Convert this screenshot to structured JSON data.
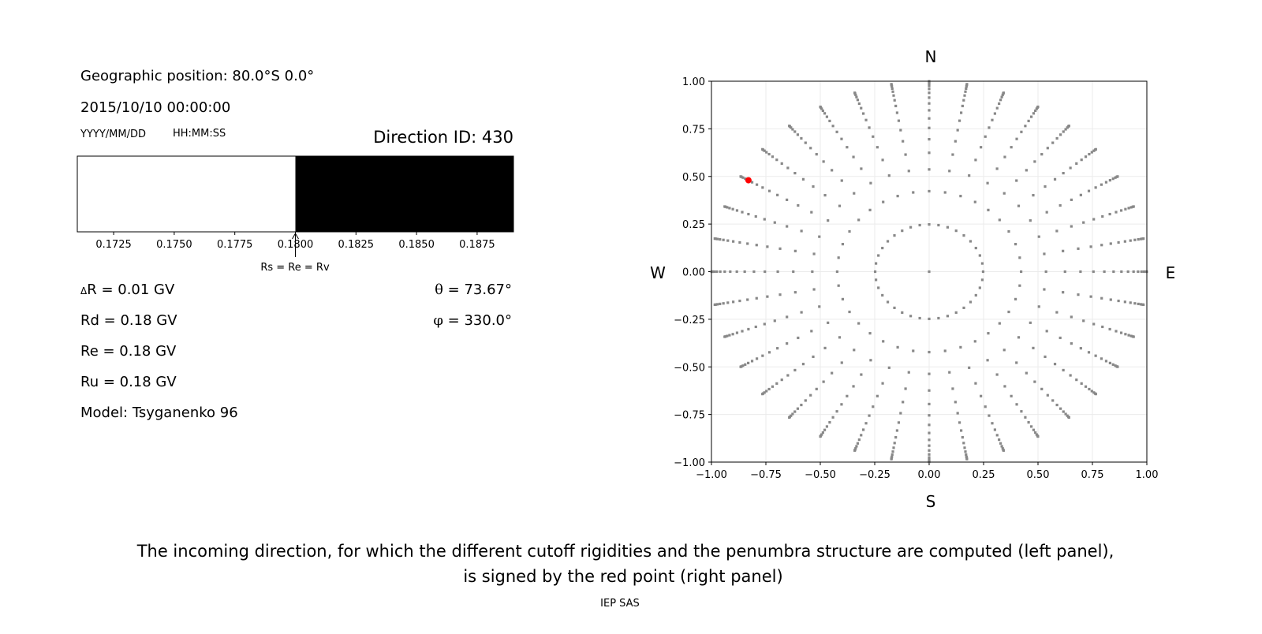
{
  "left_panel": {
    "geo_position": "Geographic position: 80.0°S 0.0°",
    "datetime": "2015/10/10 00:00:00",
    "date_format": "YYYY/MM/DD",
    "time_format": "HH:MM:SS",
    "direction_id": "Direction ID: 430",
    "annotation": "Rs = Re = Rv",
    "delta_r_symbol": "Δ",
    "delta_r": "R = 0.01 GV",
    "rd": "Rd = 0.18 GV",
    "re": "Re = 0.18 GV",
    "ru": "Ru = 0.18 GV",
    "model": "Model: Tsyganenko 96",
    "theta_symbol": "θ",
    "theta": " = 73.67°",
    "phi_symbol": "φ",
    "phi": " = 330.0°"
  },
  "right_panel": {
    "north": "N",
    "south": "S",
    "west": "W",
    "east": "E"
  },
  "caption_line1": "The incoming direction, for which the different cutoff rigidities and the penumbra structure are computed (left panel),",
  "caption_line2": "is signed by the red point (right panel)",
  "footer": "IEP SAS",
  "chart_data": [
    {
      "type": "bar",
      "description_kind": "penumbra",
      "xlim": [
        0.171,
        0.189
      ],
      "xticks": [
        "0.1725",
        "0.1750",
        "0.1775",
        "0.1800",
        "0.1825",
        "0.1850",
        "0.1875"
      ],
      "xtick_values": [
        0.1725,
        0.175,
        0.1775,
        0.18,
        0.1825,
        0.185,
        0.1875
      ],
      "segments": [
        {
          "from": 0.171,
          "to": 0.18,
          "color": "#ffffff"
        },
        {
          "from": 0.18,
          "to": 0.189,
          "color": "#000000"
        }
      ],
      "annotation_at": 0.18
    },
    {
      "type": "scatter",
      "xlim": [
        -1,
        1
      ],
      "ylim": [
        -1,
        1
      ],
      "grid": true,
      "xticks": [
        "−1.00",
        "−0.75",
        "−0.50",
        "−0.25",
        "0.00",
        "0.25",
        "0.50",
        "0.75",
        "1.00"
      ],
      "yticks": [
        "−1.00",
        "−0.75",
        "−0.50",
        "−0.25",
        "0.00",
        "0.25",
        "0.50",
        "0.75",
        "1.00"
      ],
      "tick_values": [
        -1,
        -0.75,
        -0.5,
        -0.25,
        0,
        0.25,
        0.5,
        0.75,
        1
      ],
      "point_color": "#888888",
      "highlight_color": "#ff0000",
      "zenith_deg": [
        14.36,
        24.99,
        32.47,
        38.62,
        44.05,
        48.99,
        53.58,
        57.91,
        62.05,
        66.03,
        69.89,
        73.67,
        77.36,
        81.01,
        84.62,
        88.21
      ],
      "azimuth_deg": [
        0,
        10,
        20,
        30,
        40,
        50,
        60,
        70,
        80,
        90,
        100,
        110,
        120,
        130,
        140,
        150,
        160,
        170,
        180,
        190,
        200,
        210,
        220,
        230,
        240,
        250,
        260,
        270,
        280,
        290,
        300,
        310,
        320,
        330,
        340,
        350
      ],
      "center_point": [
        0,
        0
      ],
      "highlight": {
        "theta": 73.67,
        "phi": 330.0,
        "x": -0.83,
        "y": 0.48
      }
    }
  ]
}
